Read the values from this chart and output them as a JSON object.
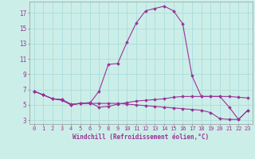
{
  "xlabel": "Windchill (Refroidissement éolien,°C)",
  "bg_color": "#cceee8",
  "grid_color": "#aadddd",
  "line_color": "#993399",
  "xlim": [
    -0.5,
    23.5
  ],
  "ylim": [
    2.5,
    18.5
  ],
  "yticks": [
    3,
    5,
    7,
    9,
    11,
    13,
    15,
    17
  ],
  "xticks": [
    0,
    1,
    2,
    3,
    4,
    5,
    6,
    7,
    8,
    9,
    10,
    11,
    12,
    13,
    14,
    15,
    16,
    17,
    18,
    19,
    20,
    21,
    22,
    23
  ],
  "series": [
    {
      "x": [
        0,
        1,
        2,
        3,
        4,
        5,
        6,
        7,
        8,
        9,
        10,
        11,
        12,
        13,
        14,
        15,
        16,
        17,
        18,
        19,
        20,
        21,
        22,
        23
      ],
      "y": [
        6.8,
        6.3,
        5.8,
        5.6,
        5.0,
        5.2,
        5.2,
        6.8,
        10.3,
        10.4,
        13.2,
        15.7,
        17.3,
        17.6,
        17.9,
        17.3,
        15.6,
        8.8,
        6.1,
        6.1,
        6.1,
        4.7,
        3.1,
        4.3
      ]
    },
    {
      "x": [
        0,
        1,
        2,
        3,
        4,
        5,
        6,
        7,
        8,
        9,
        10,
        11,
        12,
        13,
        14,
        15,
        16,
        17,
        18,
        19,
        20,
        21,
        22,
        23
      ],
      "y": [
        6.8,
        6.3,
        5.8,
        5.7,
        5.1,
        5.2,
        5.3,
        4.7,
        4.8,
        5.1,
        5.3,
        5.5,
        5.6,
        5.7,
        5.8,
        6.0,
        6.1,
        6.1,
        6.1,
        6.1,
        6.1,
        6.1,
        6.0,
        5.9
      ]
    },
    {
      "x": [
        0,
        1,
        2,
        3,
        4,
        5,
        6,
        7,
        8,
        9,
        10,
        11,
        12,
        13,
        14,
        15,
        16,
        17,
        18,
        19,
        20,
        21,
        22,
        23
      ],
      "y": [
        6.8,
        6.3,
        5.8,
        5.7,
        5.0,
        5.2,
        5.2,
        5.2,
        5.2,
        5.2,
        5.1,
        5.0,
        4.9,
        4.8,
        4.7,
        4.6,
        4.5,
        4.4,
        4.3,
        4.0,
        3.2,
        3.1,
        3.1,
        4.3
      ]
    }
  ]
}
